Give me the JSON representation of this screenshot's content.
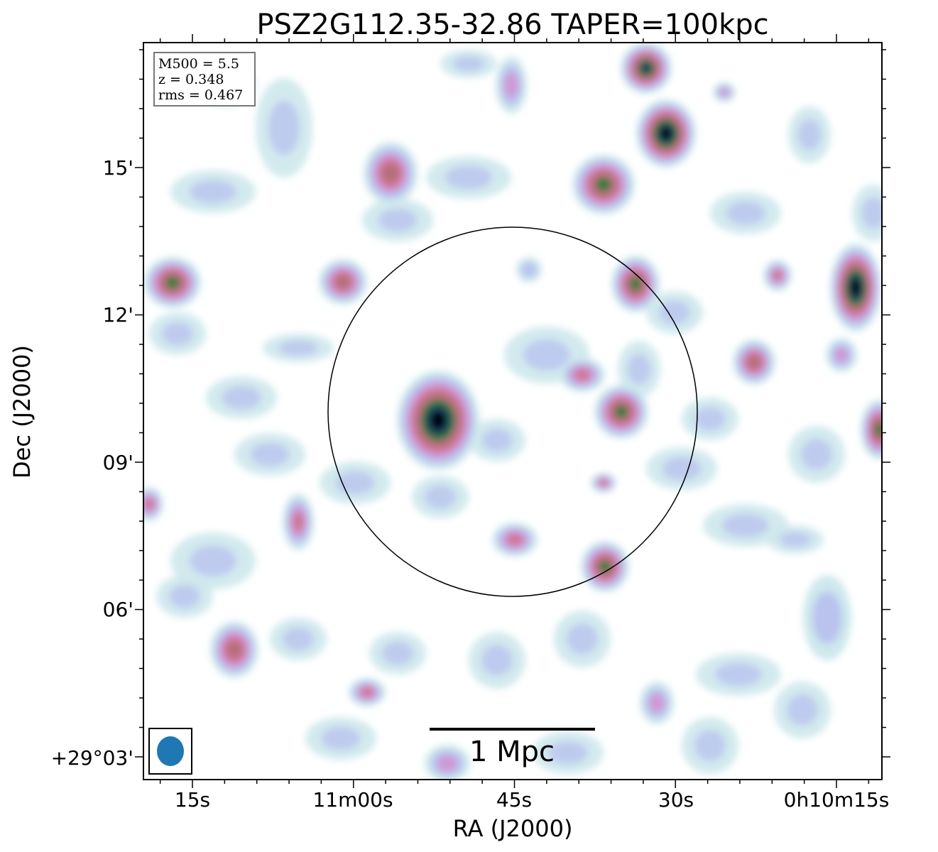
{
  "title": "PSZ2G112.35-32.86 TAPER=100kpc",
  "info": {
    "m500": "M500 = 5.5",
    "z": "z = 0.348",
    "rms": "rms = 0.467"
  },
  "axes": {
    "xlabel": "RA (J2000)",
    "ylabel": "Dec (J2000)",
    "x_ticks": [
      "15s",
      "11m00s",
      "45s",
      "30s",
      "0h10m15s"
    ],
    "y_ticks": [
      "15'",
      "12'",
      "09'",
      "06'",
      "+29°03'"
    ]
  },
  "scale_bar": {
    "label": "1 Mpc"
  },
  "colors": {
    "frame": "#000000",
    "beam": "#1f77b4",
    "colormap": [
      "#ffffff",
      "#cde8ec",
      "#b9c3ee",
      "#cf97d6",
      "#cf7493",
      "#b4707a",
      "#2f7a3a",
      "#1d4060",
      "#000000"
    ]
  }
}
